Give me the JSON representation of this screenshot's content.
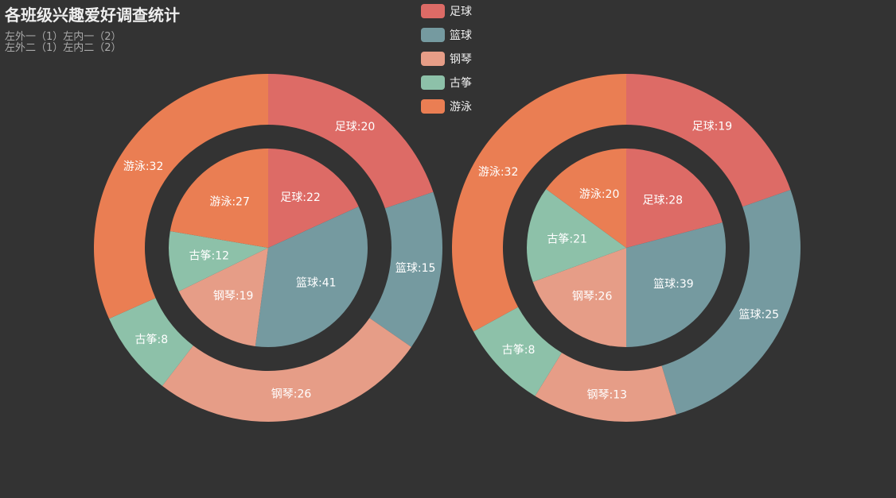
{
  "chart_data": {
    "type": "pie",
    "title": "各班级兴趣爱好调查统计",
    "subtitle": "左外一（1）左内一（2）\n左外二（1）左内二（2）",
    "categories": [
      "足球",
      "篮球",
      "钢琴",
      "古筝",
      "游泳"
    ],
    "colors": [
      "#dd6b66",
      "#759aa0",
      "#e69d87",
      "#8dc1a9",
      "#ea7e53"
    ],
    "legend_position": "top",
    "series": [
      {
        "ring": "inner",
        "chart": "left",
        "values": [
          22,
          41,
          19,
          12,
          27
        ]
      },
      {
        "ring": "outer",
        "chart": "left",
        "values": [
          20,
          15,
          26,
          8,
          32
        ]
      },
      {
        "ring": "inner",
        "chart": "right",
        "values": [
          28,
          39,
          26,
          21,
          20
        ]
      },
      {
        "ring": "outer",
        "chart": "right",
        "values": [
          19,
          25,
          13,
          8,
          32
        ]
      }
    ]
  }
}
